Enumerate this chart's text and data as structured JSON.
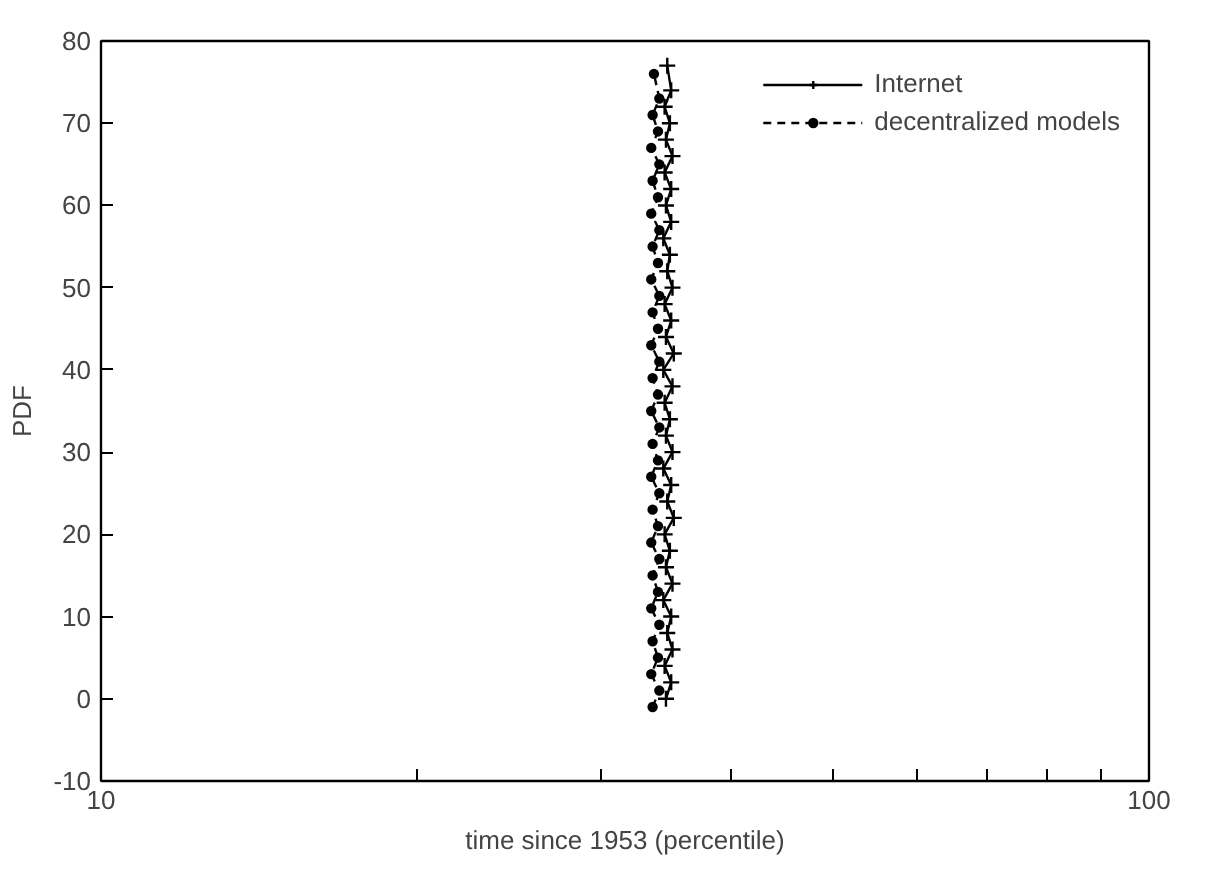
{
  "chart_data": {
    "type": "line",
    "xlabel": "time since 1953 (percentile)",
    "ylabel": "PDF",
    "log": "x",
    "grid": false,
    "legend": "top right",
    "xlim": [
      10,
      100
    ],
    "ylim": [
      -10,
      80
    ],
    "xticks": [
      10,
      {
        "value": 20,
        "label": null
      },
      {
        "value": 30,
        "label": null
      },
      {
        "value": 40,
        "label": null
      },
      {
        "value": 50,
        "label": null
      },
      {
        "value": 60,
        "label": null
      },
      {
        "value": 70,
        "label": null
      },
      {
        "value": 80,
        "label": null
      },
      {
        "value": 90,
        "label": null
      },
      100
    ],
    "yticks": [
      -10,
      0,
      10,
      20,
      30,
      40,
      50,
      60,
      70,
      80
    ],
    "series": [
      {
        "name": "Internet",
        "color": "#000000",
        "marker": "cross",
        "line_style": "solid",
        "x": [
          34.6,
          35.0,
          34.5,
          35.1,
          34.7,
          35.0,
          34.4,
          35.1,
          34.6,
          34.9,
          34.5,
          35.2,
          34.7,
          35.0,
          34.4,
          35.1,
          34.6,
          34.9,
          34.5,
          35.1,
          34.4,
          35.2,
          34.6,
          35.0,
          34.5,
          35.1,
          34.7,
          34.9,
          34.4,
          35.0,
          34.6,
          35.0,
          34.5,
          35.1,
          34.6,
          34.9,
          34.5,
          35.0,
          34.7
        ],
        "values": [
          0,
          2,
          4,
          6,
          8,
          10,
          12,
          14,
          16,
          18,
          20,
          22,
          24,
          26,
          28,
          30,
          32,
          34,
          36,
          38,
          40,
          42,
          44,
          46,
          48,
          50,
          52,
          54,
          56,
          58,
          60,
          62,
          64,
          66,
          68,
          70,
          72,
          74,
          77
        ]
      },
      {
        "name": "decentralized models",
        "color": "#000000",
        "marker": "circle",
        "line_style": "dashed",
        "x": [
          33.6,
          34.1,
          33.5,
          34.0,
          33.6,
          34.1,
          33.5,
          34.0,
          33.6,
          34.1,
          33.5,
          34.0,
          33.6,
          34.1,
          33.5,
          34.0,
          33.6,
          34.1,
          33.5,
          34.0,
          33.6,
          34.1,
          33.5,
          34.0,
          33.6,
          34.1,
          33.5,
          34.0,
          33.6,
          34.1,
          33.5,
          34.0,
          33.6,
          34.1,
          33.5,
          34.0,
          33.6,
          34.1,
          33.7
        ],
        "values": [
          -1,
          1,
          3,
          5,
          7,
          9,
          11,
          13,
          15,
          17,
          19,
          21,
          23,
          25,
          27,
          29,
          31,
          33,
          35,
          37,
          39,
          41,
          43,
          45,
          47,
          49,
          51,
          53,
          55,
          57,
          59,
          61,
          63,
          65,
          67,
          69,
          71,
          73,
          76
        ]
      }
    ]
  }
}
